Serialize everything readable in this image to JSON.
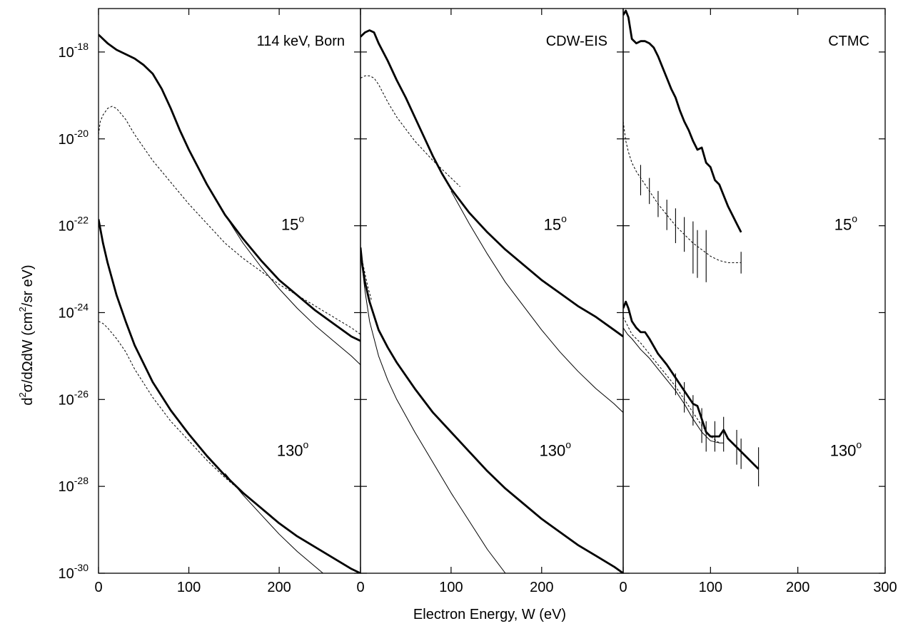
{
  "chart_data": {
    "type": "line",
    "xlabel": "Electron Energy, W (eV)",
    "ylabel": {
      "prefix": "d",
      "sup1": "2",
      "mid": "σ/dΩdW (cm",
      "sup2": "2",
      "suffix": "/sr eV)"
    },
    "y_scale": "log",
    "ylim": [
      1e-30,
      1e-17
    ],
    "y_ticks": [
      {
        "exp": "-18",
        "value": 1e-18
      },
      {
        "exp": "-20",
        "value": 1e-20
      },
      {
        "exp": "-22",
        "value": 1e-22
      },
      {
        "exp": "-24",
        "value": 1e-24
      },
      {
        "exp": "-26",
        "value": 1e-26
      },
      {
        "exp": "-28",
        "value": 1e-28
      },
      {
        "exp": "-30",
        "value": 1e-30
      }
    ],
    "x_ticks": {
      "panel1": [
        "0",
        "100",
        "200"
      ],
      "panel2": [
        "0",
        "100",
        "200"
      ],
      "panel3": [
        "0",
        "100",
        "200",
        "300"
      ]
    },
    "panels": [
      {
        "title": "114 keV, Born",
        "xlim": [
          0,
          290
        ],
        "angle_labels": [
          {
            "deg": "15",
            "sup": "o",
            "x": 215,
            "y_log": -22
          },
          {
            "deg": "130",
            "sup": "o",
            "x": 215,
            "y_log": -27.2
          }
        ],
        "series": [
          {
            "style": "thick",
            "x": [
              0,
              5,
              10,
              20,
              30,
              40,
              50,
              60,
              70,
              80,
              90,
              100,
              120,
              140,
              160,
              180,
              200,
              220,
              240,
              260,
              280,
              290
            ],
            "logy": [
              -17.6,
              -17.7,
              -17.8,
              -17.95,
              -18.05,
              -18.15,
              -18.3,
              -18.5,
              -18.85,
              -19.3,
              -19.8,
              -20.25,
              -21.05,
              -21.75,
              -22.3,
              -22.8,
              -23.25,
              -23.6,
              -23.95,
              -24.25,
              -24.55,
              -24.65
            ]
          },
          {
            "style": "thin",
            "x": [
              140,
              160,
              180,
              200,
              220,
              240,
              260,
              280,
              290
            ],
            "logy": [
              -21.75,
              -22.4,
              -22.95,
              -23.45,
              -23.9,
              -24.3,
              -24.65,
              -25.0,
              -25.2
            ]
          },
          {
            "style": "dashed",
            "x": [
              0,
              2,
              5,
              10,
              15,
              20,
              30,
              40,
              60,
              80,
              100,
              120,
              140,
              160,
              180,
              200,
              220,
              240,
              260,
              280,
              290
            ],
            "logy": [
              -19.9,
              -19.6,
              -19.45,
              -19.3,
              -19.25,
              -19.3,
              -19.55,
              -19.9,
              -20.5,
              -21.0,
              -21.5,
              -21.95,
              -22.4,
              -22.75,
              -23.05,
              -23.35,
              -23.6,
              -23.85,
              -24.1,
              -24.35,
              -24.5
            ]
          },
          {
            "style": "thick",
            "x": [
              0,
              5,
              10,
              20,
              30,
              40,
              60,
              80,
              100,
              120,
              140,
              160,
              180,
              200,
              220,
              240,
              260,
              280,
              290
            ],
            "logy": [
              -21.85,
              -22.4,
              -22.85,
              -23.6,
              -24.2,
              -24.75,
              -25.6,
              -26.25,
              -26.8,
              -27.3,
              -27.75,
              -28.15,
              -28.5,
              -28.85,
              -29.15,
              -29.4,
              -29.65,
              -29.9,
              -30.0
            ]
          },
          {
            "style": "thin",
            "x": [
              140,
              160,
              180,
              200,
              220,
              240,
              260,
              270
            ],
            "logy": [
              -27.7,
              -28.2,
              -28.65,
              -29.1,
              -29.5,
              -29.85,
              -30.2,
              -30.35
            ]
          },
          {
            "style": "dashed",
            "x": [
              0,
              5,
              10,
              20,
              30,
              40,
              60,
              80,
              100,
              120,
              140,
              160,
              180,
              200,
              220,
              240,
              260,
              280,
              290
            ],
            "logy": [
              -24.2,
              -24.25,
              -24.35,
              -24.6,
              -24.9,
              -25.3,
              -25.95,
              -26.5,
              -26.95,
              -27.4,
              -27.8,
              -28.15,
              -28.5,
              -28.85,
              -29.15,
              -29.4,
              -29.65,
              -29.9,
              -30.0
            ]
          }
        ]
      },
      {
        "title": "CDW-EIS",
        "xlim": [
          0,
          290
        ],
        "angle_labels": [
          {
            "deg": "15",
            "sup": "o",
            "x": 215,
            "y_log": -22
          },
          {
            "deg": "130",
            "sup": "o",
            "x": 215,
            "y_log": -27.2
          }
        ],
        "series": [
          {
            "style": "thick",
            "x": [
              0,
              5,
              10,
              15,
              20,
              30,
              40,
              50,
              60,
              70,
              80,
              90,
              100,
              120,
              140,
              160,
              180,
              200,
              220,
              240,
              260,
              280,
              290
            ],
            "logy": [
              -17.65,
              -17.55,
              -17.5,
              -17.55,
              -17.8,
              -18.2,
              -18.65,
              -19.05,
              -19.5,
              -19.95,
              -20.4,
              -20.8,
              -21.15,
              -21.7,
              -22.15,
              -22.55,
              -22.9,
              -23.25,
              -23.55,
              -23.85,
              -24.1,
              -24.4,
              -24.55
            ]
          },
          {
            "style": "thin",
            "x": [
              100,
              120,
              140,
              160,
              180,
              200,
              220,
              240,
              260,
              280,
              290
            ],
            "logy": [
              -21.2,
              -21.95,
              -22.65,
              -23.3,
              -23.85,
              -24.4,
              -24.9,
              -25.35,
              -25.75,
              -26.1,
              -26.3
            ]
          },
          {
            "style": "dashed",
            "x": [
              0,
              5,
              10,
              15,
              20,
              30,
              40,
              60,
              80,
              100,
              110
            ],
            "logy": [
              -18.6,
              -18.55,
              -18.55,
              -18.6,
              -18.75,
              -19.15,
              -19.5,
              -20.05,
              -20.5,
              -20.9,
              -21.1
            ]
          },
          {
            "style": "thick",
            "x": [
              0,
              2,
              5,
              10,
              20,
              30,
              40,
              60,
              80,
              100,
              120,
              140,
              160,
              180,
              200,
              220,
              240,
              260,
              280,
              290
            ],
            "logy": [
              -22.5,
              -22.9,
              -23.3,
              -23.75,
              -24.4,
              -24.8,
              -25.15,
              -25.75,
              -26.3,
              -26.75,
              -27.2,
              -27.65,
              -28.05,
              -28.4,
              -28.75,
              -29.05,
              -29.35,
              -29.6,
              -29.85,
              -30.0
            ]
          },
          {
            "style": "thin",
            "x": [
              0,
              5,
              10,
              20,
              30,
              40,
              60,
              80,
              100,
              120,
              140,
              160,
              180
            ],
            "logy": [
              -22.6,
              -23.5,
              -24.2,
              -25.0,
              -25.55,
              -26.0,
              -26.75,
              -27.45,
              -28.15,
              -28.8,
              -29.45,
              -30.0,
              -30.45
            ]
          },
          {
            "style": "dashed",
            "x": [
              0,
              2,
              5,
              8,
              12
            ],
            "logy": [
              -22.6,
              -22.8,
              -23.1,
              -23.4,
              -23.7
            ]
          }
        ]
      },
      {
        "title": "CTMC",
        "xlim": [
          0,
          300
        ],
        "angle_labels": [
          {
            "deg": "15",
            "sup": "o",
            "x": 255,
            "y_log": -22
          },
          {
            "deg": "130",
            "sup": "o",
            "x": 255,
            "y_log": -27.2
          }
        ],
        "series": [
          {
            "style": "thick",
            "x": [
              0,
              3,
              6,
              10,
              15,
              20,
              25,
              30,
              35,
              40,
              45,
              50,
              55,
              60,
              65,
              70,
              75,
              80,
              85,
              90,
              95,
              100,
              105,
              110,
              115,
              120,
              125,
              130,
              135
            ],
            "logy": [
              -17.15,
              -17.05,
              -17.2,
              -17.7,
              -17.8,
              -17.75,
              -17.75,
              -17.8,
              -17.9,
              -18.1,
              -18.35,
              -18.6,
              -18.85,
              -19.05,
              -19.35,
              -19.6,
              -19.8,
              -20.05,
              -20.25,
              -20.2,
              -20.55,
              -20.65,
              -20.95,
              -21.05,
              -21.3,
              -21.55,
              -21.75,
              -21.95,
              -22.15
            ]
          },
          {
            "style": "dashed",
            "x": [
              0,
              3,
              6,
              10,
              15,
              20,
              25,
              30,
              40,
              50,
              60,
              70,
              80,
              90,
              100,
              110,
              120,
              135
            ],
            "logy": [
              -19.6,
              -20.05,
              -20.3,
              -20.55,
              -20.75,
              -20.9,
              -21.05,
              -21.2,
              -21.5,
              -21.75,
              -22.0,
              -22.2,
              -22.4,
              -22.55,
              -22.7,
              -22.8,
              -22.85,
              -22.85
            ]
          },
          {
            "style": "thick",
            "x": [
              0,
              3,
              6,
              10,
              15,
              20,
              25,
              30,
              40,
              50,
              60,
              70,
              80,
              85,
              90,
              95,
              100,
              110,
              115,
              120,
              130,
              140,
              150,
              155
            ],
            "logy": [
              -23.9,
              -23.75,
              -23.9,
              -24.2,
              -24.35,
              -24.45,
              -24.45,
              -24.6,
              -24.95,
              -25.2,
              -25.5,
              -25.8,
              -26.1,
              -26.15,
              -26.45,
              -26.75,
              -26.85,
              -26.85,
              -26.7,
              -26.9,
              -27.1,
              -27.3,
              -27.5,
              -27.6
            ]
          },
          {
            "style": "dashed",
            "x": [
              0,
              5,
              10,
              20,
              30,
              40,
              50,
              60,
              70,
              80,
              90,
              100,
              110
            ],
            "logy": [
              -24.1,
              -24.3,
              -24.5,
              -24.7,
              -24.95,
              -25.2,
              -25.45,
              -25.7,
              -26.0,
              -26.3,
              -26.6,
              -26.85,
              -27.0
            ]
          },
          {
            "style": "thin",
            "x": [
              0,
              5,
              10,
              20,
              30,
              40,
              50,
              60,
              70,
              80,
              90,
              100,
              110,
              115
            ],
            "logy": [
              -24.35,
              -24.5,
              -24.6,
              -24.85,
              -25.05,
              -25.3,
              -25.55,
              -25.8,
              -26.1,
              -26.45,
              -26.75,
              -26.95,
              -27.0,
              -27.0
            ]
          }
        ],
        "error_bars": [
          {
            "x": 20,
            "lo": -21.3,
            "hi": -20.6
          },
          {
            "x": 30,
            "lo": -21.5,
            "hi": -20.9
          },
          {
            "x": 40,
            "lo": -21.8,
            "hi": -21.2
          },
          {
            "x": 50,
            "lo": -22.1,
            "hi": -21.4
          },
          {
            "x": 60,
            "lo": -22.4,
            "hi": -21.6
          },
          {
            "x": 70,
            "lo": -22.6,
            "hi": -21.8
          },
          {
            "x": 80,
            "lo": -23.1,
            "hi": -21.9
          },
          {
            "x": 85,
            "lo": -23.2,
            "hi": -22.1
          },
          {
            "x": 95,
            "lo": -23.3,
            "hi": -22.1
          },
          {
            "x": 135,
            "lo": -23.1,
            "hi": -22.6
          },
          {
            "x": 60,
            "lo": -25.9,
            "hi": -25.4
          },
          {
            "x": 70,
            "lo": -26.3,
            "hi": -25.6
          },
          {
            "x": 80,
            "lo": -26.6,
            "hi": -25.9
          },
          {
            "x": 90,
            "lo": -27.0,
            "hi": -26.2
          },
          {
            "x": 95,
            "lo": -27.2,
            "hi": -26.5
          },
          {
            "x": 105,
            "lo": -27.2,
            "hi": -26.5
          },
          {
            "x": 115,
            "lo": -27.2,
            "hi": -26.4
          },
          {
            "x": 130,
            "lo": -27.5,
            "hi": -26.7
          },
          {
            "x": 135,
            "lo": -27.6,
            "hi": -26.9
          },
          {
            "x": 155,
            "lo": -28.0,
            "hi": -27.1
          }
        ]
      }
    ]
  }
}
